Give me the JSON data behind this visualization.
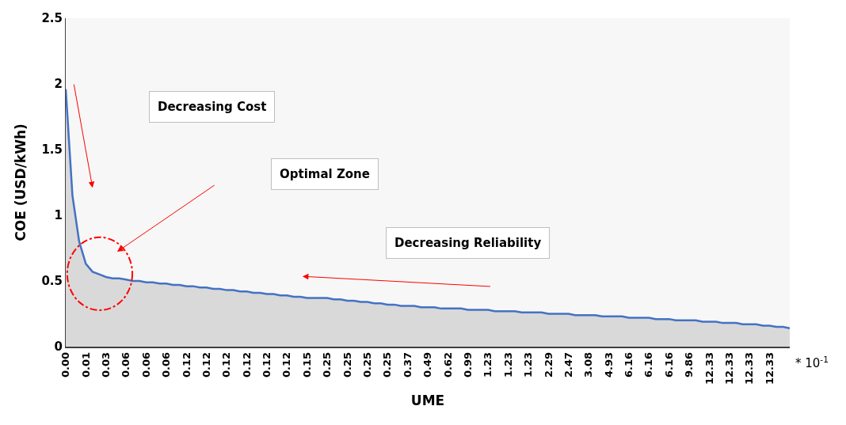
{
  "chart_data": {
    "type": "area",
    "xlabel": "UME",
    "ylabel": "COE (USD/kWh)",
    "categories": [
      "0.00",
      null,
      null,
      "0.01",
      null,
      null,
      "0.03",
      null,
      null,
      "0.06",
      null,
      null,
      "0.06",
      null,
      null,
      "0.06",
      null,
      null,
      "0.12",
      null,
      null,
      "0.12",
      null,
      null,
      "0.12",
      null,
      null,
      "0.12",
      null,
      null,
      "0.12",
      null,
      null,
      "0.12",
      null,
      null,
      "0.15",
      null,
      null,
      "0.25",
      null,
      null,
      "0.25",
      null,
      null,
      "0.25",
      null,
      null,
      "0.25",
      null,
      null,
      "0.37",
      null,
      null,
      "0.49",
      null,
      null,
      "0.62",
      null,
      null,
      "0.99",
      null,
      null,
      "1.23",
      null,
      null,
      "1.23",
      null,
      null,
      "1.23",
      null,
      null,
      "2.29",
      null,
      null,
      "2.47",
      null,
      null,
      "3.08",
      null,
      null,
      "4.93",
      null,
      null,
      "6.16",
      null,
      null,
      "6.16",
      null,
      null,
      "6.16",
      null,
      null,
      "9.86",
      null,
      null,
      "12.33",
      null,
      null,
      "12.33",
      null,
      null,
      "12.33",
      null,
      null,
      "12.33",
      null,
      null,
      null
    ],
    "series": [
      {
        "color": "#4472c4",
        "values": [
          1.96,
          1.15,
          0.8,
          0.63,
          0.57,
          0.55,
          0.53,
          0.52,
          0.52,
          0.51,
          0.5,
          0.5,
          0.49,
          0.49,
          0.48,
          0.48,
          0.47,
          0.47,
          0.46,
          0.46,
          0.45,
          0.45,
          0.44,
          0.44,
          0.43,
          0.43,
          0.42,
          0.42,
          0.41,
          0.41,
          0.4,
          0.4,
          0.39,
          0.39,
          0.38,
          0.38,
          0.37,
          0.37,
          0.37,
          0.37,
          0.36,
          0.36,
          0.35,
          0.35,
          0.34,
          0.34,
          0.33,
          0.33,
          0.32,
          0.32,
          0.31,
          0.31,
          0.31,
          0.3,
          0.3,
          0.3,
          0.29,
          0.29,
          0.29,
          0.29,
          0.28,
          0.28,
          0.28,
          0.28,
          0.27,
          0.27,
          0.27,
          0.27,
          0.26,
          0.26,
          0.26,
          0.26,
          0.25,
          0.25,
          0.25,
          0.25,
          0.24,
          0.24,
          0.24,
          0.24,
          0.23,
          0.23,
          0.23,
          0.23,
          0.22,
          0.22,
          0.22,
          0.22,
          0.21,
          0.21,
          0.21,
          0.2,
          0.2,
          0.2,
          0.2,
          0.19,
          0.19,
          0.19,
          0.18,
          0.18,
          0.18,
          0.17,
          0.17,
          0.17,
          0.16,
          0.16,
          0.15,
          0.15,
          0.14
        ]
      }
    ],
    "ylim": [
      0,
      2.5
    ],
    "yticks": [
      0,
      0.5,
      1,
      1.5,
      2,
      2.5
    ],
    "grid": false,
    "marker": "none",
    "annotations": [
      "Decreasing Cost",
      "Optimal Zone",
      "Decreasing Reliability",
      "* 10$^{-1}$"
    ]
  }
}
